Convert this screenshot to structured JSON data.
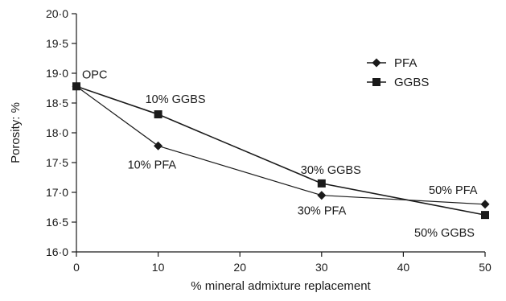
{
  "chart_data": {
    "type": "line",
    "xlabel": "% mineral admixture replacement",
    "ylabel": "Porosity: %",
    "xlim": [
      0,
      50
    ],
    "ylim": [
      16.0,
      20.0
    ],
    "x_ticks": [
      "0",
      "10",
      "20",
      "30",
      "40",
      "50"
    ],
    "x_tick_values": [
      0,
      10,
      20,
      30,
      40,
      50
    ],
    "y_ticks": [
      "16·0",
      "16·5",
      "17·0",
      "17·5",
      "18·0",
      "18·5",
      "19·0",
      "19·5",
      "20·0"
    ],
    "y_tick_values": [
      16.0,
      16.5,
      17.0,
      17.5,
      18.0,
      18.5,
      19.0,
      19.5,
      20.0
    ],
    "grid": false,
    "legend_position": "top-right",
    "series": [
      {
        "name": "PFA",
        "marker": "diamond",
        "x": [
          0,
          10,
          30,
          50
        ],
        "values": [
          18.78,
          17.78,
          16.95,
          16.8
        ],
        "color": "#1a1a1a"
      },
      {
        "name": "GGBS",
        "marker": "square",
        "x": [
          0,
          10,
          30,
          50
        ],
        "values": [
          18.78,
          18.31,
          17.15,
          16.62
        ],
        "color": "#1a1a1a"
      }
    ],
    "annotations": [
      {
        "text": "OPC",
        "x": 0,
        "y": 18.78
      },
      {
        "text": "10% GGBS",
        "x": 10,
        "y": 18.31
      },
      {
        "text": "10% PFA",
        "x": 10,
        "y": 17.78
      },
      {
        "text": "30% GGBS",
        "x": 30,
        "y": 17.15
      },
      {
        "text": "30% PFA",
        "x": 30,
        "y": 16.95
      },
      {
        "text": "50% PFA",
        "x": 50,
        "y": 16.8
      },
      {
        "text": "50% GGBS",
        "x": 50,
        "y": 16.62
      }
    ]
  }
}
